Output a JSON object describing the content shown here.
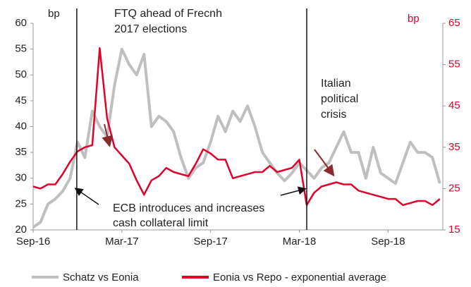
{
  "chart_data": {
    "type": "line",
    "y_label": "bp",
    "y2_label": "bp",
    "x": [
      0,
      0.5,
      1,
      1.5,
      2,
      2.5,
      3,
      3.5,
      4,
      4.5,
      5,
      5.5,
      6,
      6.5,
      7,
      7.5,
      8,
      8.5,
      9,
      9.5,
      10,
      10.5,
      11,
      11.5,
      12,
      12.5,
      13,
      13.5,
      14,
      14.5,
      15,
      15.5,
      16,
      16.5,
      17,
      17.5,
      18,
      18.5,
      19,
      19.5,
      20,
      20.5,
      21,
      21.5,
      22,
      22.5,
      23,
      23.5,
      24,
      24.5,
      25,
      25.5,
      26,
      26.5,
      27,
      27.5
    ],
    "xlim": [
      0,
      27.7
    ],
    "xticks": [
      {
        "value": 0,
        "label": "Sep-16"
      },
      {
        "value": 6,
        "label": "Mar-17"
      },
      {
        "value": 12,
        "label": "Sep-17"
      },
      {
        "value": 18,
        "label": "Mar-18"
      },
      {
        "value": 24,
        "label": "Sep-18"
      }
    ],
    "ylim": [
      20,
      60
    ],
    "yticks": [
      20,
      25,
      30,
      35,
      40,
      45,
      50,
      55,
      60
    ],
    "y2lim": [
      15,
      65
    ],
    "y2ticks": [
      15,
      25,
      35,
      45,
      55,
      65
    ],
    "grid": false,
    "series": [
      {
        "name": "Schatz vs Eonia",
        "color": "#bfbfbf",
        "values": [
          20.5,
          21.5,
          25,
          26,
          27.5,
          30,
          37,
          34,
          43,
          40,
          38,
          48,
          55,
          52,
          50,
          54,
          40,
          42,
          41,
          39,
          34,
          30,
          32,
          33,
          37,
          42,
          39,
          43,
          41,
          44,
          40,
          35,
          33,
          31,
          29.5,
          31,
          33,
          31.5,
          30,
          32,
          33,
          36,
          39,
          35,
          35,
          30,
          36,
          31,
          30,
          29,
          33,
          37,
          35,
          35,
          34,
          29
        ]
      },
      {
        "name": "Eonia vs Repo - exponential average",
        "color": "#e0002a",
        "axis": "y2",
        "values": [
          25.5,
          25,
          26,
          26,
          28.5,
          31.5,
          34,
          35,
          35.5,
          59,
          42,
          35,
          33,
          31,
          27,
          23.5,
          27,
          28,
          30,
          29,
          28.5,
          28,
          31,
          34.5,
          33.5,
          32,
          32,
          27.5,
          28,
          28.5,
          29,
          29,
          30.5,
          29,
          29.5,
          30,
          32,
          21,
          24,
          25.5,
          26,
          26.5,
          26,
          26,
          24.5,
          24,
          23.5,
          23,
          22.5,
          22.5,
          21,
          21.5,
          22,
          22,
          21,
          22.5
        ]
      }
    ],
    "event_lines": [
      2.95,
      18.5
    ],
    "annotations": [
      {
        "lines": [
          "FTQ ahead of Frecnh",
          "2017 elections"
        ]
      },
      {
        "lines": [
          "Italian",
          "political",
          "crisis"
        ]
      },
      {
        "lines": [
          "ECB introduces and increases",
          "cash collateral limit"
        ]
      }
    ]
  }
}
